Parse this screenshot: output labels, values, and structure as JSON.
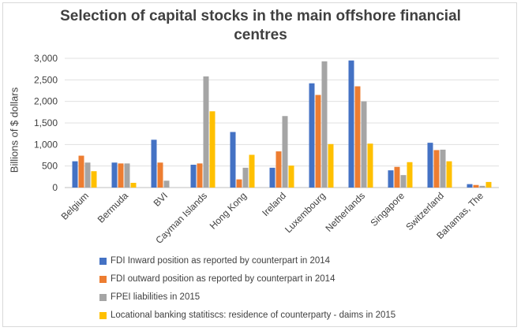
{
  "chart_data": {
    "type": "bar",
    "title": "Selection of capital stocks in the main offshore financial centres",
    "title_lines": [
      "Selection of capital stocks in the main offshore financial",
      "centres"
    ],
    "xlabel": "",
    "ylabel": "Billions of $ dollars",
    "ylim": [
      0,
      3000
    ],
    "yticks": [
      0,
      500,
      1000,
      1500,
      2000,
      2500,
      3000
    ],
    "ytick_labels": [
      "0",
      "500",
      "1,000",
      "1,500",
      "2,000",
      "2,500",
      "3,000"
    ],
    "grid": true,
    "legend_position": "bottom",
    "categories": [
      "Belgium",
      "Bermuda",
      "BVI",
      "Cayman Islands",
      "Hong Kong",
      "Ireland",
      "Luxembourg",
      "Netherlands",
      "Singapore",
      "Switzerland",
      "Bahamas, The"
    ],
    "series": [
      {
        "name": "FDI Inward position as reported by counterpart in 2014",
        "color": "#4472c4",
        "values": [
          610,
          580,
          1110,
          530,
          1290,
          460,
          2420,
          2950,
          400,
          1040,
          80
        ]
      },
      {
        "name": "FDI outward position as reported by counterpart in 2014",
        "color": "#ed7d31",
        "values": [
          740,
          560,
          580,
          560,
          190,
          840,
          2150,
          2350,
          480,
          870,
          60
        ]
      },
      {
        "name": "FPEI liabilities in  2015",
        "color": "#a5a5a5",
        "values": [
          580,
          560,
          160,
          2580,
          460,
          1660,
          2930,
          2000,
          290,
          880,
          40
        ]
      },
      {
        "name": "Locational banking statitiscs: residence of counterparty - daims in 2015",
        "color": "#ffc000",
        "values": [
          380,
          110,
          0,
          1770,
          760,
          510,
          1010,
          1020,
          590,
          610,
          130
        ]
      }
    ]
  }
}
